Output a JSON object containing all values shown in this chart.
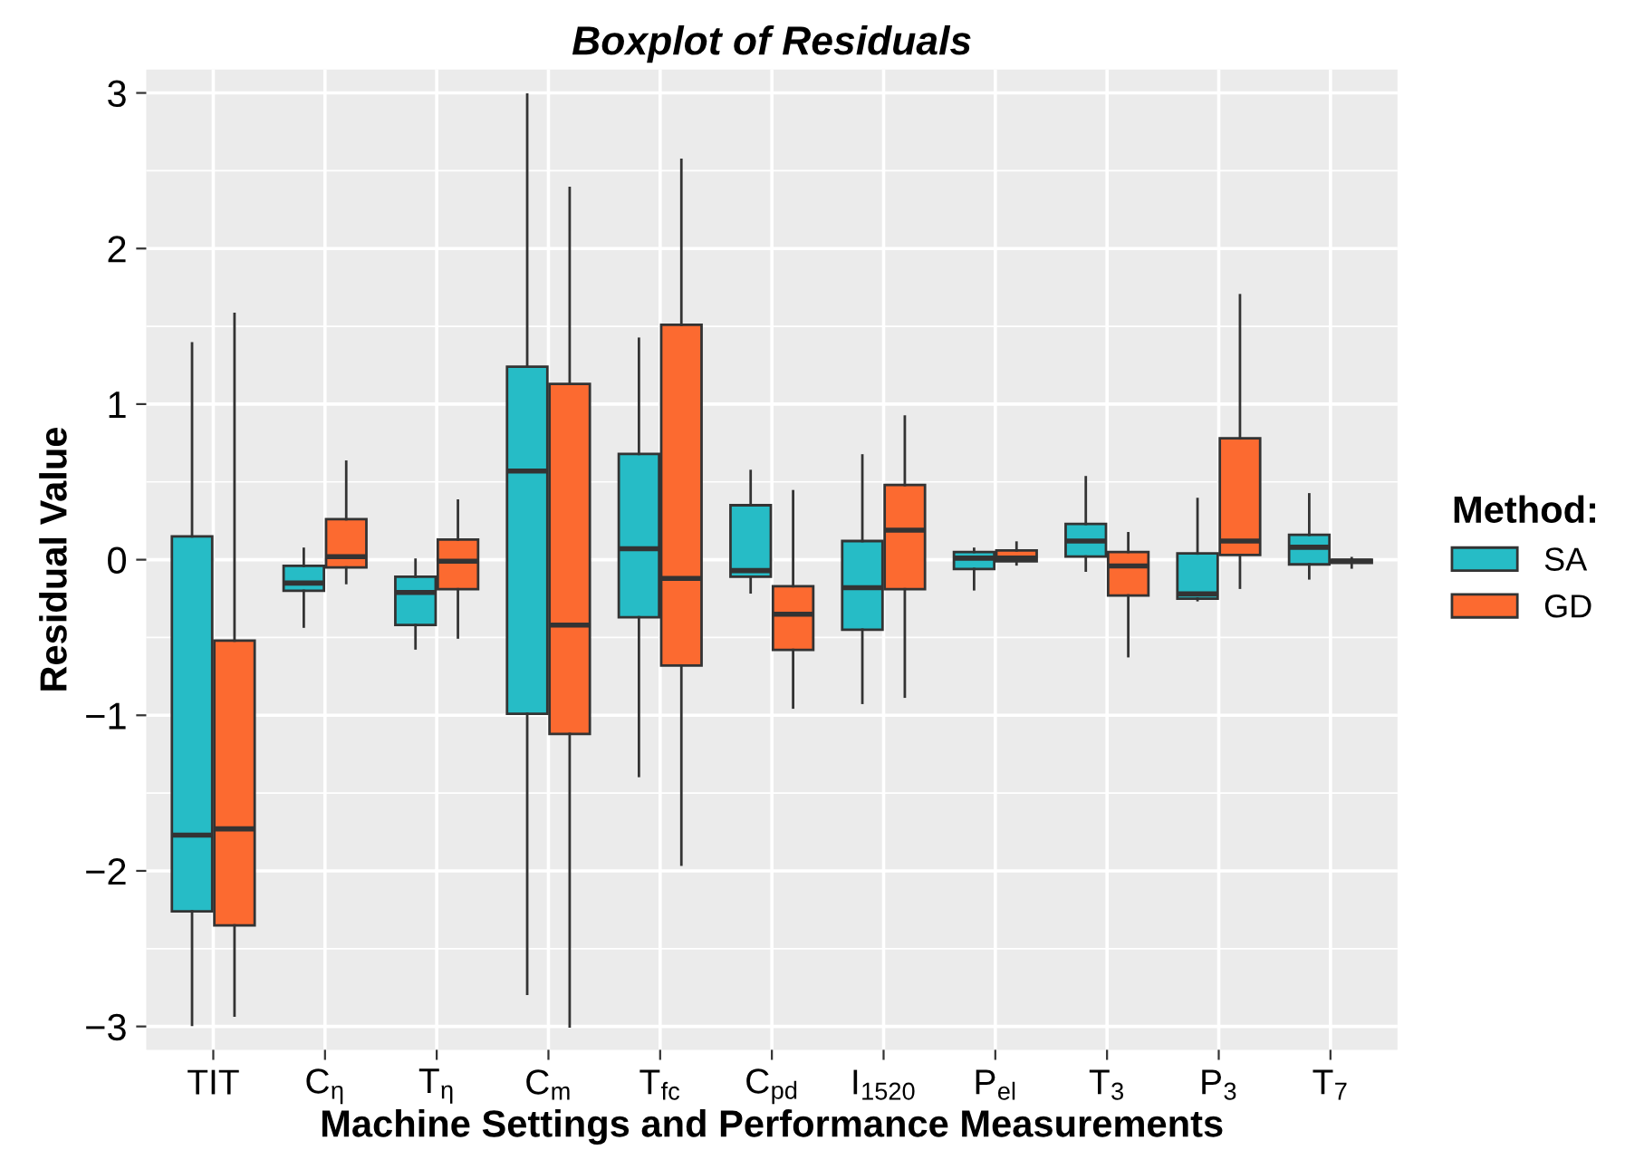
{
  "chart_data": {
    "type": "box",
    "title": "Boxplot of Residuals",
    "xlabel": "Machine Settings and Performance Measurements",
    "ylabel": "Residual Value",
    "legend_title": "Method:",
    "categories": [
      "TIT",
      "C$_{η}$",
      "T$_{η}$",
      "C$_{m}$",
      "T$_{fc}$",
      "C$_{pd}$",
      "I$_{1520}$",
      "P$_{el}$",
      "T$_{3}$",
      "P$_{3}$",
      "T$_{7}$"
    ],
    "series": [
      {
        "name": "SA",
        "color": "#26bcc6",
        "boxes": [
          {
            "low": -2.99,
            "q1": -2.26,
            "median": -1.77,
            "q3": 0.15,
            "high": 1.39
          },
          {
            "low": -0.43,
            "q1": -0.2,
            "median": -0.15,
            "q3": -0.04,
            "high": 0.07
          },
          {
            "low": -0.57,
            "q1": -0.42,
            "median": -0.21,
            "q3": -0.11,
            "high": 0.0
          },
          {
            "low": -2.79,
            "q1": -0.99,
            "median": 0.57,
            "q3": 1.24,
            "high": 2.99
          },
          {
            "low": -1.39,
            "q1": -0.37,
            "median": 0.07,
            "q3": 0.68,
            "high": 1.42
          },
          {
            "low": -0.21,
            "q1": -0.11,
            "median": -0.07,
            "q3": 0.35,
            "high": 0.57
          },
          {
            "low": -0.92,
            "q1": -0.45,
            "median": -0.18,
            "q3": 0.12,
            "high": 0.67
          },
          {
            "low": -0.19,
            "q1": -0.06,
            "median": 0.01,
            "q3": 0.05,
            "high": 0.07
          },
          {
            "low": -0.07,
            "q1": 0.02,
            "median": 0.12,
            "q3": 0.23,
            "high": 0.53
          },
          {
            "low": -0.26,
            "q1": -0.25,
            "median": -0.22,
            "q3": 0.04,
            "high": 0.39
          },
          {
            "low": -0.12,
            "q1": -0.03,
            "median": 0.08,
            "q3": 0.16,
            "high": 0.42
          }
        ]
      },
      {
        "name": "GD",
        "color": "#fc6a30",
        "boxes": [
          {
            "low": -2.93,
            "q1": -2.35,
            "median": -1.73,
            "q3": -0.52,
            "high": 1.58
          },
          {
            "low": -0.15,
            "q1": -0.05,
            "median": 0.02,
            "q3": 0.26,
            "high": 0.63
          },
          {
            "low": -0.5,
            "q1": -0.19,
            "median": -0.01,
            "q3": 0.13,
            "high": 0.38
          },
          {
            "low": -3.0,
            "q1": -1.12,
            "median": -0.42,
            "q3": 1.13,
            "high": 2.39
          },
          {
            "low": -1.96,
            "q1": -0.68,
            "median": -0.12,
            "q3": 1.51,
            "high": 2.57
          },
          {
            "low": -0.95,
            "q1": -0.58,
            "median": -0.35,
            "q3": -0.17,
            "high": 0.44
          },
          {
            "low": -0.88,
            "q1": -0.19,
            "median": 0.19,
            "q3": 0.48,
            "high": 0.92
          },
          {
            "low": -0.03,
            "q1": -0.01,
            "median": 0.01,
            "q3": 0.06,
            "high": 0.11
          },
          {
            "low": -0.62,
            "q1": -0.23,
            "median": -0.04,
            "q3": 0.05,
            "high": 0.17
          },
          {
            "low": -0.18,
            "q1": 0.03,
            "median": 0.12,
            "q3": 0.78,
            "high": 1.7
          },
          {
            "low": -0.05,
            "q1": -0.02,
            "median": -0.01,
            "q3": 0.0,
            "high": 0.01
          }
        ]
      }
    ],
    "ylim": [
      -3.15,
      3.15
    ],
    "yticks": [
      {
        "value": -3,
        "label": "−3"
      },
      {
        "value": -2,
        "label": "−2"
      },
      {
        "value": -1,
        "label": "−1"
      },
      0,
      1,
      2,
      3
    ],
    "grid": true,
    "legend": "right"
  }
}
